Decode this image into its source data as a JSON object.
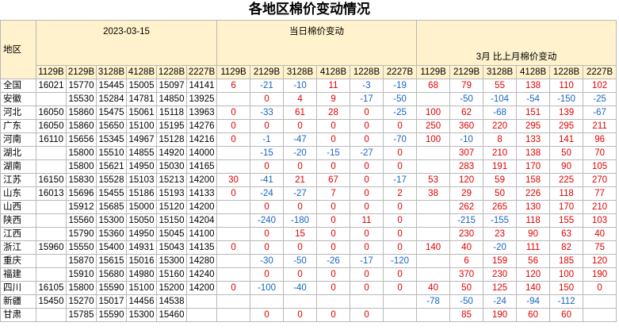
{
  "title": "各地区棉价变动情况",
  "table": {
    "header": {
      "region": "地区",
      "groups": [
        "2023-03-15",
        "当日棉价变动",
        "3月 比上月棉价变动"
      ],
      "columns": [
        "1129B",
        "2129B",
        "3128B",
        "4128B",
        "1228B",
        "2227B",
        "1129B",
        "2129B",
        "3128B",
        "4128B",
        "1228B",
        "2227B",
        "1129B",
        "2129B",
        "3128B",
        "4128B",
        "1228B",
        "2227B"
      ]
    },
    "rows": [
      {
        "region": "全国",
        "values": [
          16021,
          15770,
          15445,
          15005,
          15097,
          14141,
          6,
          -21,
          -10,
          11,
          -3,
          -19,
          68,
          79,
          55,
          138,
          110,
          102
        ]
      },
      {
        "region": "安徽",
        "values": [
          null,
          15530,
          15284,
          14781,
          14850,
          13925,
          null,
          0,
          4,
          9,
          -17,
          -50,
          null,
          -50,
          -104,
          -54,
          -150,
          -25
        ]
      },
      {
        "region": "河北",
        "values": [
          16050,
          15860,
          15475,
          15061,
          15118,
          13963,
          0,
          -33,
          61,
          28,
          0,
          -25,
          100,
          62,
          -68,
          151,
          139,
          -67
        ]
      },
      {
        "region": "广东",
        "values": [
          16050,
          15860,
          15650,
          15100,
          15195,
          14276,
          0,
          0,
          0,
          0,
          0,
          0,
          250,
          360,
          220,
          295,
          295,
          211
        ]
      },
      {
        "region": "河南",
        "values": [
          16110,
          15656,
          15345,
          14967,
          15128,
          14216,
          0,
          -1,
          -47,
          0,
          0,
          -70,
          100,
          -10,
          8,
          133,
          141,
          96
        ]
      },
      {
        "region": "湖北",
        "values": [
          null,
          15800,
          15510,
          14855,
          14920,
          14000,
          null,
          -15,
          -20,
          -15,
          -27,
          0,
          null,
          307,
          210,
          138,
          50,
          70
        ]
      },
      {
        "region": "湖南",
        "values": [
          null,
          15800,
          15621,
          14950,
          15030,
          14165,
          null,
          0,
          0,
          0,
          0,
          0,
          null,
          283,
          191,
          170,
          90,
          105
        ]
      },
      {
        "region": "江苏",
        "values": [
          16150,
          15830,
          15528,
          15103,
          15213,
          14200,
          30,
          -41,
          21,
          67,
          0,
          -17,
          53,
          120,
          59,
          158,
          225,
          270
        ]
      },
      {
        "region": "山东",
        "values": [
          16013,
          15696,
          15455,
          15186,
          15193,
          14133,
          0,
          -24,
          -27,
          7,
          0,
          2,
          38,
          29,
          50,
          226,
          118,
          77
        ]
      },
      {
        "region": "山西",
        "values": [
          null,
          15912,
          15685,
          15000,
          15120,
          14200,
          null,
          0,
          0,
          0,
          0,
          0,
          null,
          262,
          265,
          130,
          170,
          210
        ]
      },
      {
        "region": "陕西",
        "values": [
          null,
          15560,
          15300,
          15050,
          15150,
          14204,
          null,
          -240,
          -180,
          0,
          11,
          0,
          null,
          -215,
          -155,
          118,
          155,
          103
        ]
      },
      {
        "region": "江西",
        "values": [
          null,
          15790,
          15360,
          14950,
          15045,
          14100,
          null,
          0,
          15,
          0,
          0,
          0,
          null,
          230,
          23,
          90,
          63,
          40
        ]
      },
      {
        "region": "浙江",
        "values": [
          15960,
          15550,
          15400,
          14931,
          15043,
          14135,
          0,
          0,
          0,
          0,
          0,
          0,
          140,
          40,
          -20,
          111,
          82,
          75
        ]
      },
      {
        "region": "重庆",
        "values": [
          null,
          15870,
          15615,
          15016,
          15300,
          14280,
          null,
          -30,
          -50,
          -26,
          -17,
          -120,
          null,
          6,
          159,
          56,
          185,
          120
        ]
      },
      {
        "region": "福建",
        "values": [
          null,
          15910,
          15680,
          14980,
          15160,
          14240,
          null,
          0,
          0,
          0,
          0,
          0,
          null,
          370,
          230,
          120,
          100,
          190
        ]
      },
      {
        "region": "四川",
        "values": [
          16105,
          15800,
          15590,
          15100,
          15200,
          14200,
          0,
          -100,
          -40,
          0,
          0,
          0,
          40,
          50,
          125,
          140,
          150,
          0
        ]
      },
      {
        "region": "新疆",
        "values": [
          15450,
          15270,
          15017,
          14456,
          14538,
          null,
          null,
          null,
          null,
          null,
          null,
          null,
          -78,
          -50,
          -24,
          -94,
          -112,
          null
        ]
      },
      {
        "region": "甘肃",
        "values": [
          null,
          15785,
          15590,
          15300,
          15460,
          null,
          null,
          0,
          0,
          0,
          0,
          null,
          null,
          85,
          190,
          60,
          60,
          null
        ]
      }
    ]
  }
}
